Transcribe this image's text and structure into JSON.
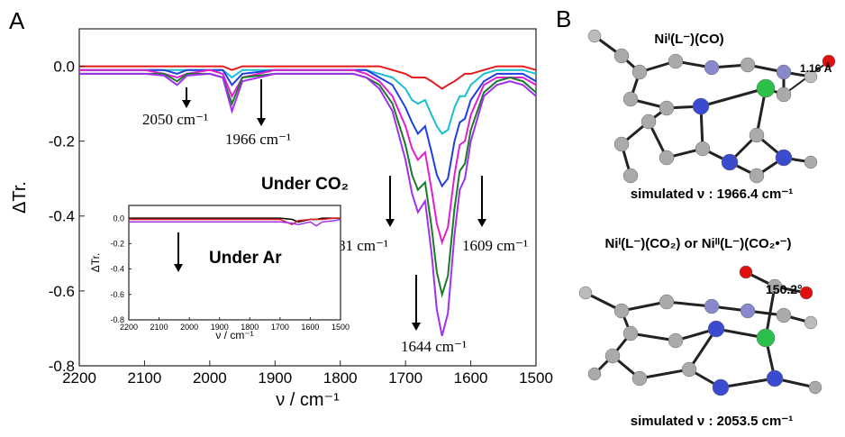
{
  "panel_labels": [
    "A",
    "B"
  ],
  "chart_data": [
    {
      "type": "line",
      "ylabel": "ΔTr.",
      "xlabel": "ν / cm⁻¹",
      "xlim": [
        2200,
        1500
      ],
      "xticks": [
        2200,
        2100,
        2000,
        1900,
        1800,
        1700,
        1600,
        1500
      ],
      "ylim": [
        -0.8,
        0.1
      ],
      "yticks": [
        {
          "value": 0,
          "label": "0.0"
        },
        -0.2,
        -0.4,
        -0.6,
        -0.8
      ],
      "annotations": [
        "2050 cm⁻¹",
        "1966 cm⁻¹",
        "Under CO₂",
        "1681 cm⁻¹",
        "1609 cm⁻¹",
        "1644 cm⁻¹"
      ],
      "x": [
        2200,
        2150,
        2100,
        2070,
        2050,
        2035,
        2000,
        1980,
        1966,
        1950,
        1900,
        1850,
        1800,
        1780,
        1760,
        1740,
        1720,
        1700,
        1690,
        1681,
        1670,
        1660,
        1652,
        1644,
        1635,
        1625,
        1617,
        1609,
        1600,
        1580,
        1560,
        1540,
        1520,
        1500
      ],
      "series": [
        {
          "color": "#e41a1c",
          "values": [
            0,
            0,
            0,
            0,
            0,
            0,
            0,
            0,
            -0.01,
            0,
            0,
            0,
            0,
            0,
            0,
            0,
            -0.01,
            -0.02,
            -0.03,
            -0.03,
            -0.03,
            -0.04,
            -0.05,
            -0.06,
            -0.05,
            -0.04,
            -0.03,
            -0.02,
            -0.02,
            -0.01,
            0,
            0,
            0,
            -0.01
          ]
        },
        {
          "color": "#17becf",
          "values": [
            -0.01,
            -0.01,
            -0.01,
            -0.01,
            -0.01,
            -0.01,
            -0.01,
            -0.01,
            -0.03,
            -0.01,
            -0.01,
            -0.01,
            -0.01,
            -0.01,
            -0.01,
            -0.02,
            -0.03,
            -0.06,
            -0.09,
            -0.1,
            -0.09,
            -0.13,
            -0.16,
            -0.18,
            -0.17,
            -0.11,
            -0.08,
            -0.08,
            -0.05,
            -0.02,
            -0.01,
            -0.01,
            -0.01,
            -0.02
          ]
        },
        {
          "color": "#1f3fe0",
          "values": [
            -0.01,
            -0.01,
            -0.01,
            -0.01,
            -0.02,
            -0.01,
            -0.01,
            -0.01,
            -0.05,
            -0.02,
            -0.01,
            -0.01,
            -0.01,
            -0.01,
            -0.01,
            -0.03,
            -0.05,
            -0.11,
            -0.15,
            -0.18,
            -0.16,
            -0.23,
            -0.29,
            -0.32,
            -0.3,
            -0.2,
            -0.15,
            -0.14,
            -0.09,
            -0.04,
            -0.02,
            -0.02,
            -0.02,
            -0.04
          ]
        },
        {
          "color": "#e020d0",
          "values": [
            -0.01,
            -0.01,
            -0.01,
            -0.02,
            -0.03,
            -0.02,
            -0.01,
            -0.02,
            -0.08,
            -0.03,
            -0.01,
            -0.01,
            -0.01,
            -0.01,
            -0.02,
            -0.04,
            -0.08,
            -0.16,
            -0.22,
            -0.25,
            -0.23,
            -0.33,
            -0.42,
            -0.47,
            -0.43,
            -0.29,
            -0.21,
            -0.2,
            -0.13,
            -0.05,
            -0.03,
            -0.03,
            -0.03,
            -0.05
          ]
        },
        {
          "color": "#1a7a2a",
          "values": [
            -0.02,
            -0.02,
            -0.02,
            -0.02,
            -0.04,
            -0.02,
            -0.02,
            -0.03,
            -0.1,
            -0.03,
            -0.02,
            -0.02,
            -0.02,
            -0.02,
            -0.03,
            -0.05,
            -0.1,
            -0.21,
            -0.29,
            -0.33,
            -0.31,
            -0.43,
            -0.55,
            -0.61,
            -0.56,
            -0.38,
            -0.28,
            -0.26,
            -0.17,
            -0.07,
            -0.04,
            -0.03,
            -0.04,
            -0.07
          ]
        },
        {
          "color": "#a030f0",
          "values": [
            -0.02,
            -0.02,
            -0.02,
            -0.025,
            -0.05,
            -0.025,
            -0.02,
            -0.03,
            -0.12,
            -0.04,
            -0.02,
            -0.02,
            -0.02,
            -0.02,
            -0.03,
            -0.06,
            -0.12,
            -0.25,
            -0.34,
            -0.39,
            -0.36,
            -0.5,
            -0.65,
            -0.72,
            -0.66,
            -0.45,
            -0.33,
            -0.3,
            -0.2,
            -0.08,
            -0.05,
            -0.04,
            -0.05,
            -0.08
          ]
        }
      ]
    },
    {
      "type": "line",
      "ylabel": "ΔTr.",
      "xlabel": "ν / cm⁻¹",
      "xlim": [
        2200,
        1500
      ],
      "xticks": [
        2200,
        2100,
        2000,
        1900,
        1800,
        1700,
        1600,
        1500
      ],
      "ylim": [
        -0.8,
        0.1
      ],
      "yticks": [
        {
          "value": 0,
          "label": "0.0"
        },
        -0.2,
        -0.4,
        -0.6,
        -0.8
      ],
      "annotations": [
        "Under Ar"
      ],
      "x": [
        2200,
        2100,
        2000,
        1900,
        1800,
        1700,
        1660,
        1640,
        1600,
        1580,
        1560,
        1520,
        1500
      ],
      "series": [
        {
          "color": "#000000",
          "values": [
            0,
            0,
            0,
            0,
            0,
            0,
            -0.01,
            -0.03,
            -0.01,
            -0.01,
            0,
            0,
            0
          ]
        },
        {
          "color": "#e41a1c",
          "values": [
            -0.01,
            -0.01,
            -0.01,
            -0.01,
            -0.01,
            -0.01,
            -0.05,
            -0.02,
            -0.01,
            -0.01,
            -0.01,
            0,
            0
          ]
        },
        {
          "color": "#a030f0",
          "values": [
            -0.03,
            -0.03,
            -0.03,
            -0.03,
            -0.03,
            -0.03,
            -0.04,
            -0.05,
            -0.03,
            -0.06,
            -0.03,
            -0.02,
            -0.01
          ]
        }
      ]
    }
  ],
  "structures": [
    {
      "title": "Niᴵ(L⁻)(CO)",
      "geometry_label": "1.16 Å",
      "caption": "simulated ν : 1966.4 cm⁻¹"
    },
    {
      "title": "Niᴵ(L⁻)(CO₂) or Niᴵᴵ(L⁻)(CO₂•⁻)",
      "geometry_label": "150.2°",
      "caption": "simulated ν : 2053.5 cm⁻¹"
    }
  ]
}
